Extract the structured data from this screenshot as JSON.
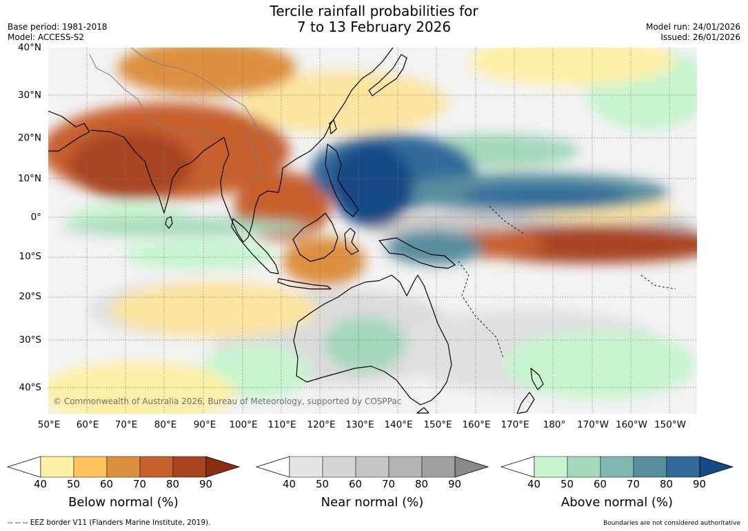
{
  "title": {
    "line1": "Tercile rainfall probabilities for",
    "line2": "7 to 13 February 2026"
  },
  "meta": {
    "base_period": "Base period: 1981-2018",
    "model": "Model: ACCESS-S2",
    "model_run": "Model run: 24/01/2026",
    "issued": "Issued: 26/01/2026"
  },
  "map": {
    "latitude_labels": [
      "40°N",
      "30°N",
      "20°N",
      "10°N",
      "0°",
      "10°S",
      "20°S",
      "30°S",
      "40°S"
    ],
    "longitude_labels": [
      "50°E",
      "60°E",
      "70°E",
      "80°E",
      "90°E",
      "100°E",
      "110°E",
      "120°E",
      "130°E",
      "140°E",
      "150°E",
      "160°E",
      "170°E",
      "180°",
      "170°W",
      "160°W",
      "150°W"
    ],
    "copyright": "© Commonwealth of Australia 2026, Bureau of Meteorology, supported by COSPPac"
  },
  "colorbars": [
    {
      "id": "below",
      "title": "Below normal (%)",
      "ticks": [
        "40",
        "50",
        "60",
        "70",
        "80",
        "90"
      ],
      "colors": [
        "#fff0a8",
        "#fdc45e",
        "#dd9040",
        "#c8602e",
        "#a94420",
        "#8a2e12"
      ]
    },
    {
      "id": "near",
      "title": "Near normal (%)",
      "ticks": [
        "40",
        "50",
        "60",
        "70",
        "80",
        "90"
      ],
      "colors": [
        "#e6e6e6",
        "#d6d6d6",
        "#c6c6c6",
        "#b4b4b4",
        "#a0a0a0",
        "#888888"
      ]
    },
    {
      "id": "above",
      "title": "Above normal (%)",
      "ticks": [
        "40",
        "50",
        "60",
        "70",
        "80",
        "90"
      ],
      "colors": [
        "#c8f5d0",
        "#a4d8bc",
        "#7fb8b0",
        "#568e9e",
        "#336a9a",
        "#164a86"
      ]
    }
  ],
  "footer": {
    "eez_note": "--  --  -- EEZ border V11 (Flanders Marine Institute, 2019).",
    "disclaimer": "Boundaries are not considered authoritative"
  }
}
